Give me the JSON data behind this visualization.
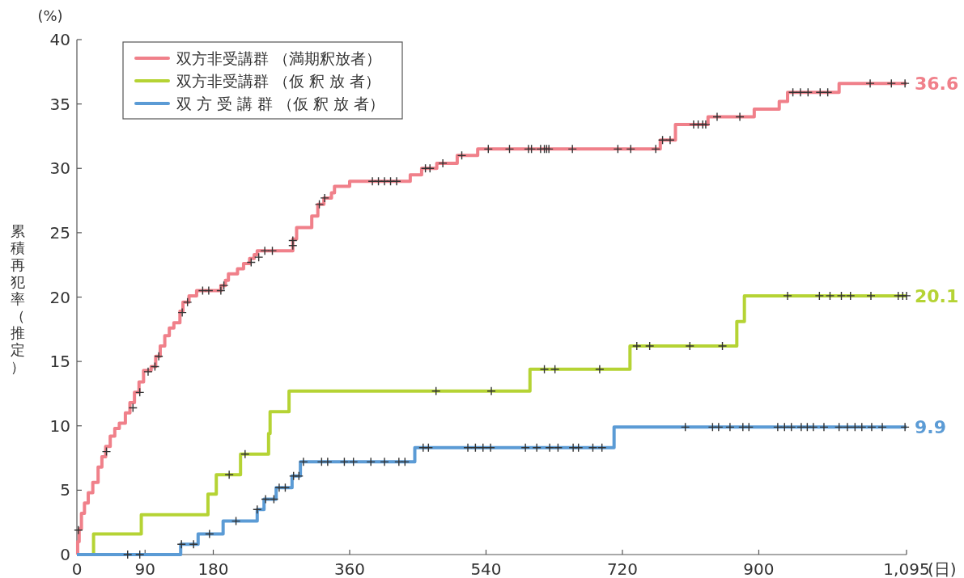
{
  "chart_data": {
    "type": "step",
    "ylabel": "累積再犯率（推定）",
    "xlabel": "(日)",
    "annotations": [
      "(%)"
    ],
    "xlim": [
      0,
      1095
    ],
    "xticks": [
      0,
      90,
      180,
      360,
      540,
      720,
      900,
      {
        "value": 1095,
        "label": "1,095"
      }
    ],
    "ylim": [
      0,
      40
    ],
    "yticks": [
      0,
      5,
      10,
      15,
      20,
      25,
      30,
      35,
      40
    ],
    "legend": "top left",
    "series": [
      {
        "name": "双方非受講群 （満期釈放者）",
        "color": "#f0808a",
        "x": [
          0,
          1,
          3,
          6,
          10,
          15,
          21,
          28,
          33,
          38,
          44,
          50,
          56,
          64,
          70,
          76,
          82,
          88,
          98,
          104,
          110,
          116,
          122,
          128,
          136,
          140,
          148,
          158,
          190,
          196,
          200,
          212,
          220,
          228,
          234,
          238,
          285,
          290,
          310,
          318,
          326,
          336,
          340,
          360,
          440,
          455,
          475,
          502,
          529,
          770,
          790,
          833,
          894,
          927,
          938,
          1006,
          1095
        ],
        "values": [
          0,
          1.0,
          2.0,
          3.2,
          4.0,
          4.8,
          5.6,
          6.8,
          7.6,
          8.4,
          9.2,
          9.8,
          10.2,
          11.0,
          11.8,
          12.6,
          13.4,
          14.3,
          14.6,
          15.4,
          16.2,
          17.0,
          17.6,
          18.0,
          18.9,
          19.6,
          20.1,
          20.5,
          20.9,
          21.3,
          21.8,
          22.2,
          22.6,
          23.0,
          23.3,
          23.6,
          24.5,
          25.4,
          26.3,
          27.2,
          27.7,
          28.1,
          28.6,
          29.0,
          29.5,
          30.0,
          30.4,
          31.0,
          31.5,
          32.2,
          33.4,
          34.0,
          34.6,
          35.2,
          35.9,
          36.6,
          36.6
        ],
        "value_labels": [
          null,
          null,
          null,
          null,
          null,
          null,
          null,
          null,
          null,
          null,
          null,
          null,
          null,
          null,
          null,
          null,
          null,
          null,
          null,
          null,
          null,
          null,
          null,
          null,
          null,
          null,
          null,
          null,
          null,
          null,
          null,
          null,
          null,
          null,
          null,
          null,
          null,
          null,
          null,
          null,
          null,
          null,
          null,
          null,
          null,
          null,
          null,
          null,
          null,
          null,
          null,
          null,
          null,
          null,
          null,
          null,
          "36.6"
        ]
      },
      {
        "name": "双方非受講群 （仮 釈 放 者）",
        "color": "#b5d334",
        "x": [
          22,
          22,
          85,
          173,
          184,
          216,
          253,
          255,
          280,
          598,
          730,
          871,
          881,
          1095
        ],
        "values": [
          0,
          1.6,
          3.1,
          4.7,
          6.2,
          7.8,
          9.4,
          11.1,
          12.7,
          14.4,
          16.2,
          18.1,
          20.1,
          20.1
        ],
        "value_labels": [
          null,
          null,
          null,
          null,
          null,
          null,
          null,
          null,
          null,
          null,
          null,
          null,
          null,
          "20.1"
        ]
      },
      {
        "name": "双 方 受 講 群 （仮 釈 放 者）",
        "color": "#5b9bd5",
        "x": [
          0,
          137,
          160,
          193,
          238,
          247,
          263,
          284,
          295,
          446,
          709,
          1095
        ],
        "values": [
          0,
          0.8,
          1.6,
          2.6,
          3.5,
          4.3,
          5.2,
          6.1,
          7.2,
          8.3,
          9.9,
          9.9
        ],
        "value_labels": [
          null,
          null,
          null,
          null,
          null,
          null,
          null,
          null,
          null,
          null,
          null,
          "9.9"
        ]
      },
      {
        "type": "scatter",
        "marker": "cross",
        "color": "#333333",
        "x": [
          2,
          39,
          74,
          83,
          94,
          103,
          108,
          139,
          146,
          166,
          174,
          190,
          194,
          230,
          240,
          248,
          258,
          285,
          285,
          320,
          327,
          390,
          398,
          406,
          414,
          422,
          460,
          466,
          483,
          508,
          543,
          571,
          596,
          600,
          612,
          617,
          620,
          623,
          654,
          714,
          731,
          764,
          773,
          783,
          814,
          820,
          826,
          830,
          845,
          875,
          945,
          955,
          965,
          981,
          991,
          1047,
          1075,
          1093
        ],
        "values": [
          1.9,
          8.0,
          11.4,
          12.6,
          14.2,
          14.6,
          15.4,
          18.8,
          19.6,
          20.5,
          20.5,
          20.5,
          20.9,
          22.7,
          23.1,
          23.6,
          23.6,
          24.0,
          24.4,
          27.2,
          27.7,
          29.0,
          29.0,
          29.0,
          29.0,
          29.0,
          30.0,
          30.0,
          30.4,
          31.0,
          31.5,
          31.5,
          31.5,
          31.5,
          31.5,
          31.5,
          31.5,
          31.5,
          31.5,
          31.5,
          31.5,
          31.5,
          32.2,
          32.2,
          33.4,
          33.4,
          33.4,
          33.4,
          34.0,
          34.0,
          35.9,
          35.9,
          35.9,
          35.9,
          35.9,
          36.6,
          36.6,
          36.6
        ]
      },
      {
        "type": "scatter",
        "marker": "cross",
        "color": "#333333",
        "x": [
          201,
          222,
          474,
          547,
          617,
          631,
          690,
          739,
          756,
          809,
          852,
          938,
          980,
          994,
          1009,
          1021,
          1048,
          1084,
          1090,
          1095
        ],
        "values": [
          6.2,
          7.8,
          12.7,
          12.7,
          14.4,
          14.4,
          14.4,
          16.2,
          16.2,
          16.2,
          16.2,
          20.1,
          20.1,
          20.1,
          20.1,
          20.1,
          20.1,
          20.1,
          20.1,
          20.1
        ]
      },
      {
        "type": "scatter",
        "marker": "cross",
        "color": "#333333",
        "x": [
          67,
          83,
          138,
          154,
          175,
          210,
          238,
          249,
          260,
          267,
          275,
          286,
          293,
          299,
          323,
          331,
          353,
          365,
          388,
          406,
          425,
          433,
          457,
          464,
          516,
          526,
          536,
          546,
          592,
          607,
          624,
          635,
          655,
          662,
          681,
          693,
          803,
          839,
          847,
          862,
          879,
          887,
          925,
          934,
          943,
          956,
          964,
          972,
          986,
          1006,
          1017,
          1027,
          1036,
          1049,
          1063,
          1093
        ],
        "values": [
          0,
          0,
          0.8,
          0.8,
          1.6,
          2.6,
          3.5,
          4.3,
          4.3,
          5.2,
          5.2,
          6.1,
          6.1,
          7.2,
          7.2,
          7.2,
          7.2,
          7.2,
          7.2,
          7.2,
          7.2,
          7.2,
          8.3,
          8.3,
          8.3,
          8.3,
          8.3,
          8.3,
          8.3,
          8.3,
          8.3,
          8.3,
          8.3,
          8.3,
          8.3,
          8.3,
          9.9,
          9.9,
          9.9,
          9.9,
          9.9,
          9.9,
          9.9,
          9.9,
          9.9,
          9.9,
          9.9,
          9.9,
          9.9,
          9.9,
          9.9,
          9.9,
          9.9,
          9.9,
          9.9,
          9.9
        ]
      }
    ]
  }
}
